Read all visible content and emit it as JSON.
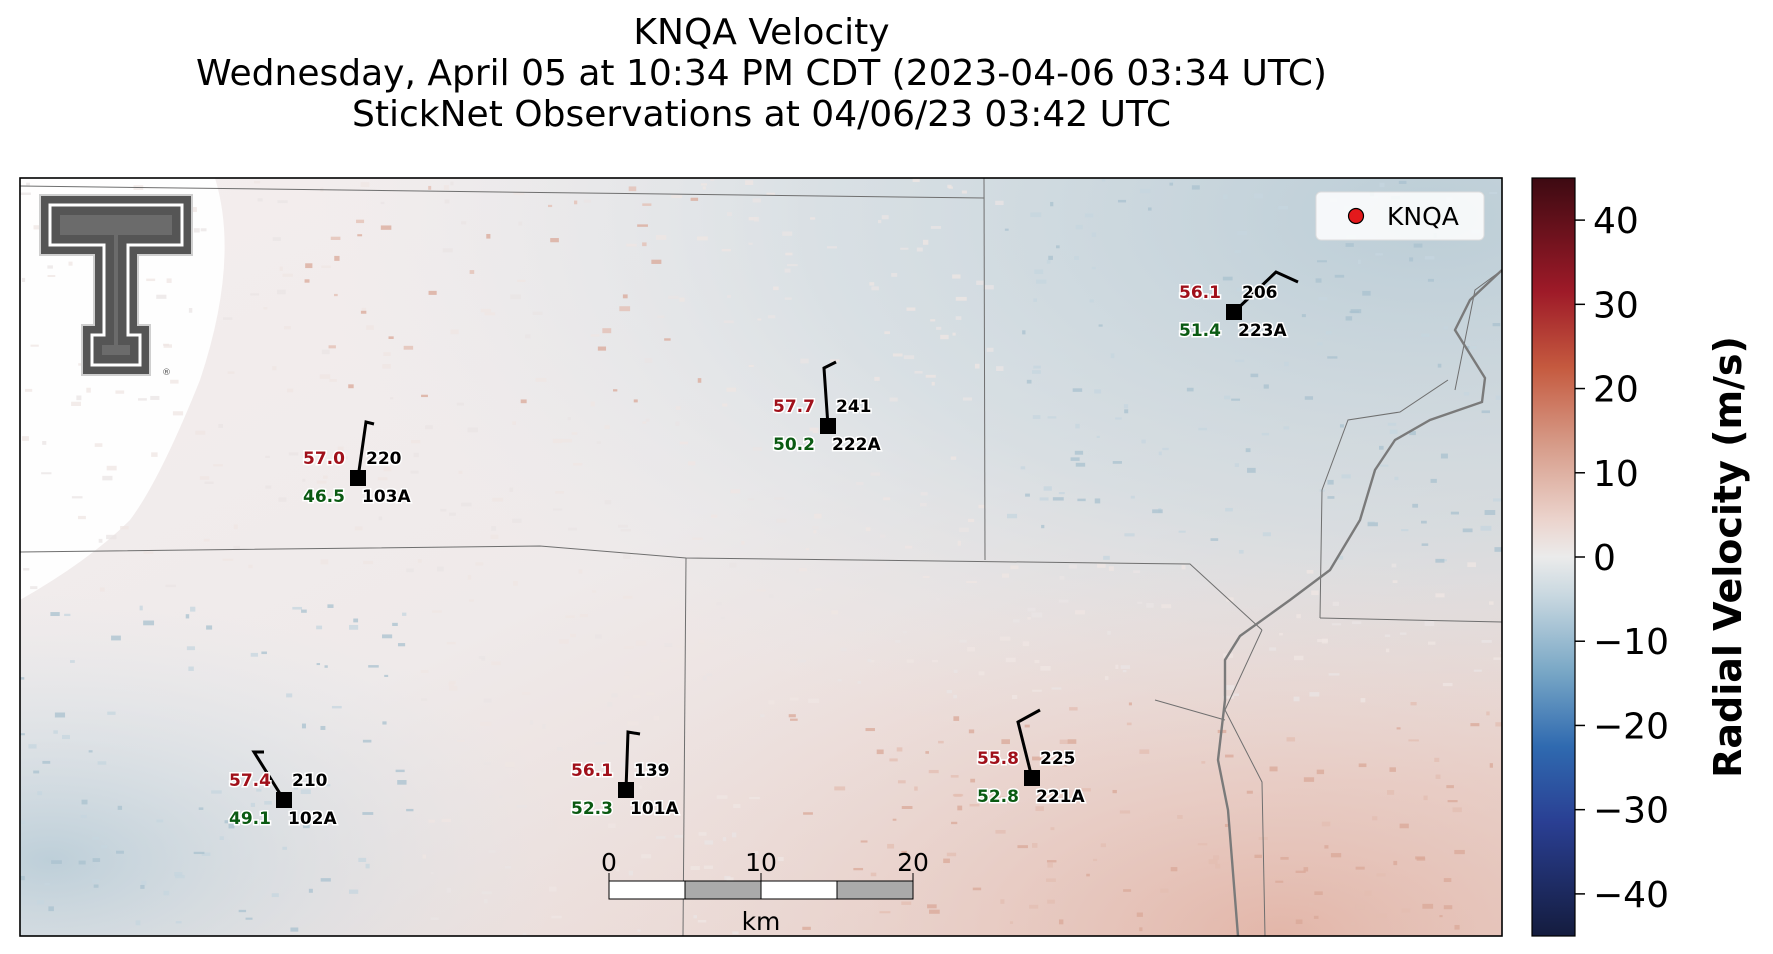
{
  "title": {
    "line1": "KNQA Velocity",
    "line2": "Wednesday, April 05 at 10:34 PM CDT (2023-04-06 03:34 UTC)",
    "line3": "StickNet Observations at 04/06/23 03:42 UTC"
  },
  "legend": {
    "label": "KNQA",
    "marker_color": "#e3191c"
  },
  "colorbar": {
    "label": "Radial Velocity (m/s)",
    "ticks": [
      "40",
      "30",
      "20",
      "10",
      "0",
      "−10",
      "−20",
      "−30",
      "−40"
    ],
    "range": [
      -45,
      45
    ]
  },
  "scalebar": {
    "ticks": [
      "0",
      "10",
      "20"
    ],
    "unit": "km"
  },
  "stations": [
    {
      "id": "103A",
      "temp": "57.0",
      "dew": "46.5",
      "pressure": "220"
    },
    {
      "id": "222A",
      "temp": "57.7",
      "dew": "50.2",
      "pressure": "241"
    },
    {
      "id": "223A",
      "temp": "56.1",
      "dew": "51.4",
      "pressure": "206"
    },
    {
      "id": "102A",
      "temp": "57.4",
      "dew": "49.1",
      "pressure": "210"
    },
    {
      "id": "101A",
      "temp": "56.1",
      "dew": "52.3",
      "pressure": "139"
    },
    {
      "id": "221A",
      "temp": "55.8",
      "dew": "52.8",
      "pressure": "225"
    }
  ],
  "colors": {
    "temp": "#a0101a",
    "dew": "#0a5a12",
    "cmap_low": "#1a1c3a",
    "cmap_mid": "#ececec",
    "cmap_high": "#3a0a12"
  }
}
